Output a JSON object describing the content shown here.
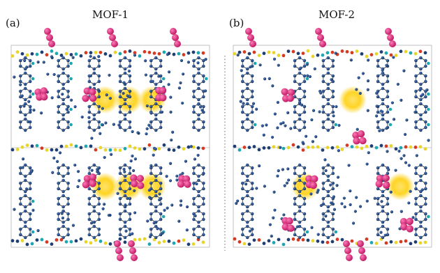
{
  "panels": [
    {
      "letter": "(a)",
      "title": "MOF-1",
      "cavities": [
        [
          4,
          1
        ],
        [
          5,
          1
        ],
        [
          6,
          1
        ],
        [
          4,
          3
        ],
        [
          5,
          3
        ],
        [
          6,
          3
        ]
      ],
      "guest_sites": [
        [
          1,
          1
        ],
        [
          3,
          1
        ],
        [
          6,
          1
        ],
        [
          3,
          3
        ],
        [
          5,
          3
        ],
        [
          7,
          3
        ]
      ]
    },
    {
      "letter": "(b)",
      "title": "MOF-2",
      "cavities": [
        [
          5,
          1
        ],
        [
          3,
          3
        ],
        [
          7,
          3
        ]
      ],
      "guest_sites": [
        [
          2,
          1
        ],
        [
          5,
          2
        ],
        [
          3,
          3
        ],
        [
          6,
          3
        ],
        [
          2,
          4
        ],
        [
          7,
          4
        ]
      ]
    }
  ],
  "colors": {
    "carbon": "#1f3f73",
    "nitrogen": "#1ea7b0",
    "oxygen": "#d43b22",
    "metal": "#e8d52a",
    "guest": "#e0287a",
    "cavity": "#ffd21a",
    "bond": "#333333"
  },
  "divider": "dotted-vertical"
}
